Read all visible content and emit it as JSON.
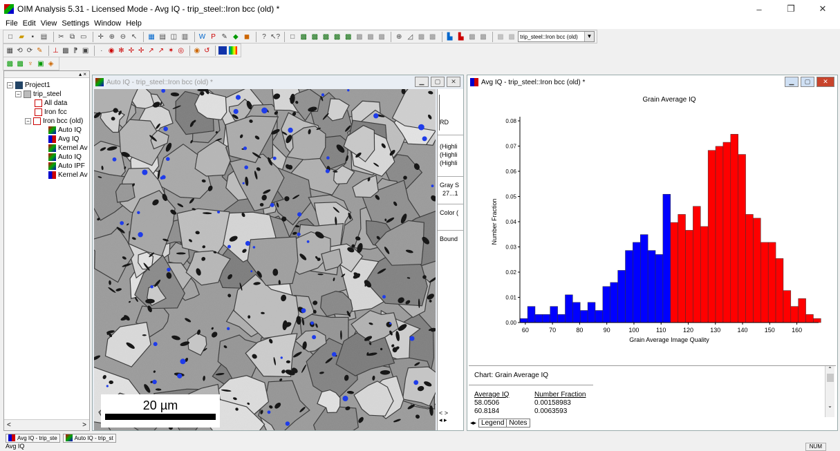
{
  "window": {
    "title": "OIM Analysis 5.31 - Licensed Mode - Avg IQ - trip_steel::Iron bcc (old) *"
  },
  "window_controls": {
    "minimize": "–",
    "restore": "❐",
    "close": "✕"
  },
  "menu": [
    "File",
    "Edit",
    "View",
    "Settings",
    "Window",
    "Help"
  ],
  "toolbar": {
    "dataset_select": "trip_steel::Iron bcc (old)"
  },
  "tree": {
    "items": [
      {
        "label": "Project1"
      },
      {
        "label": "trip_steel"
      },
      {
        "label": "All data"
      },
      {
        "label": "Iron fcc"
      },
      {
        "label": "Iron bcc (old)"
      },
      {
        "label": "Auto IQ"
      },
      {
        "label": "Avg IQ"
      },
      {
        "label": "Kernel Av"
      },
      {
        "label": "Auto IQ"
      },
      {
        "label": "Auto IPF"
      },
      {
        "label": "Kernel Av"
      }
    ]
  },
  "map_window": {
    "title": "Auto IQ - trip_steel::Iron bcc (old) *",
    "scale_bar": "20 µm",
    "side_panel": {
      "rd": "RD",
      "highlight_lines": [
        "(Highli",
        "(Highli",
        "(Highli"
      ],
      "gray_scale": "Gray S",
      "gray_range": "27...1",
      "color": "Color (",
      "boundaries": "Bound"
    }
  },
  "chart_window": {
    "title": "Avg IQ - trip_steel::Iron bcc (old) *",
    "data_title": "Chart:  Grain Average IQ",
    "table": {
      "headers": [
        "Average IQ",
        "Number Fraction"
      ],
      "rows": [
        [
          "58.0506",
          "0.00158983"
        ],
        [
          "60.8184",
          "0.0063593"
        ]
      ]
    },
    "tabs": [
      "Legend",
      "Notes"
    ]
  },
  "chart_data": {
    "type": "bar",
    "title": "Grain Average IQ",
    "xlabel": "Grain Average Image Quality",
    "ylabel": "Number Fraction",
    "xlim": [
      58,
      168
    ],
    "ylim": [
      0,
      0.08
    ],
    "xticks": [
      60,
      70,
      80,
      90,
      100,
      110,
      120,
      130,
      140,
      150,
      160
    ],
    "yticks": [
      0.0,
      0.01,
      0.02,
      0.03,
      0.04,
      0.05,
      0.06,
      0.07,
      0.08
    ],
    "bin_width": 2.77,
    "x": [
      58.05,
      60.82,
      63.59,
      66.36,
      69.13,
      71.9,
      74.67,
      77.44,
      80.21,
      82.98,
      85.75,
      88.52,
      91.29,
      94.06,
      96.83,
      99.6,
      102.37,
      105.14,
      107.91,
      110.68,
      113.45,
      116.22,
      118.99,
      121.76,
      124.53,
      127.3,
      130.07,
      132.84,
      135.61,
      138.38,
      141.15,
      143.92,
      146.69,
      149.46,
      152.23,
      155.0,
      157.77,
      160.54,
      163.31,
      166.08
    ],
    "values": [
      0.0016,
      0.0064,
      0.0032,
      0.0032,
      0.0064,
      0.0032,
      0.011,
      0.008,
      0.0048,
      0.008,
      0.0048,
      0.0143,
      0.0159,
      0.0207,
      0.0286,
      0.0318,
      0.0349,
      0.0286,
      0.027,
      0.0509,
      0.0397,
      0.0429,
      0.0366,
      0.0461,
      0.0381,
      0.0683,
      0.0699,
      0.0715,
      0.0747,
      0.0667,
      0.0429,
      0.0414,
      0.0318,
      0.0318,
      0.0254,
      0.0127,
      0.0064,
      0.0095,
      0.0032,
      0.0016
    ],
    "colors": {
      "low": "#0000ff",
      "high": "#ff0000",
      "threshold": 112.1
    }
  },
  "taskbar": [
    "Avg IQ - trip_ste",
    "Auto IQ - trip_st"
  ],
  "status": {
    "text": "Avg IQ",
    "num": "NUM"
  }
}
